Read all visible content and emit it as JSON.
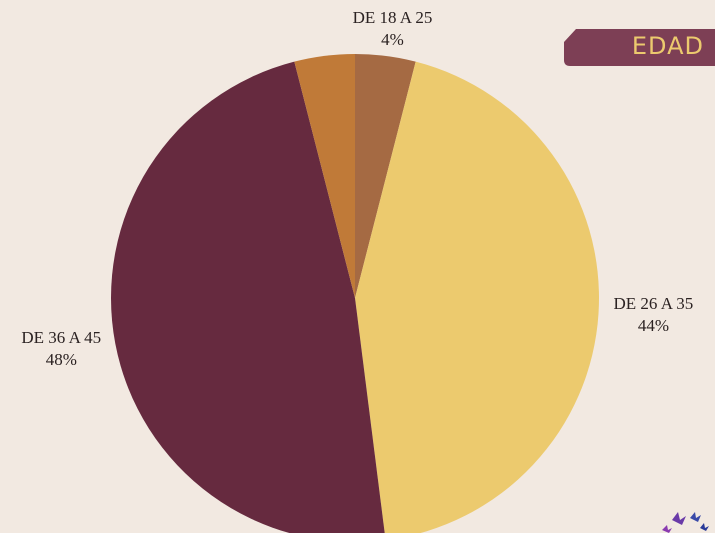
{
  "chart_data": {
    "type": "pie",
    "title": "EDAD",
    "categories": [
      "DE 18 A 25",
      "DE 26 A 35",
      "DE 36 A 45",
      null
    ],
    "values": [
      4,
      44,
      48,
      4
    ],
    "value_labels": [
      "4%",
      "44%",
      "48%",
      null
    ],
    "colors": [
      "#a56a43",
      "#ecca6e",
      "#662a3f",
      "#c07a38"
    ]
  }
}
